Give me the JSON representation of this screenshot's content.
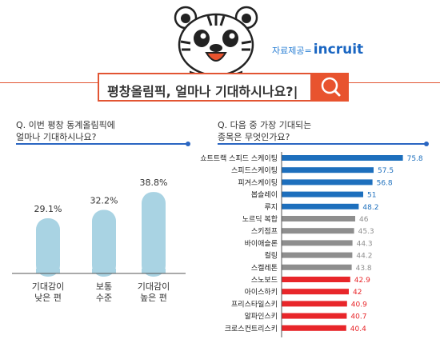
{
  "header": {
    "source_label": "자료제공=",
    "source_brand": "인크루트",
    "source_brand_text": "incruit",
    "search_text": "평창올림픽, 얼마나 기대하시나요?|"
  },
  "left": {
    "question_line1": "Q. 이번 평창 동계올림픽에",
    "question_line2": "얼마나 기대하시나요?"
  },
  "right": {
    "question_line1": "Q. 다음 중 가장 기대되는",
    "question_line2": "종목은 무엇인가요?"
  },
  "colors": {
    "blue": "#1d6fbd",
    "gray": "#8e8e8e",
    "red": "#e8262a",
    "lightblue": "#a9d3e3",
    "accent": "#e8532e"
  },
  "chart_data": [
    {
      "type": "bar",
      "categories": [
        "기대감이 낮은 편",
        "보통 수준",
        "기대감이 높은 편"
      ],
      "category_lines": [
        [
          "기대감이",
          "낮은 편"
        ],
        [
          "보통",
          "수준"
        ],
        [
          "기대감이",
          "높은 편"
        ]
      ],
      "values": [
        29.1,
        32.2,
        38.8
      ],
      "value_labels": [
        "29.1%",
        "32.2%",
        "38.8%"
      ]
    },
    {
      "type": "bar",
      "orientation": "horizontal",
      "categories": [
        "쇼트트랙 스피드 스케이팅",
        "스피드스케이팅",
        "피겨스케이팅",
        "봅슬레이",
        "루지",
        "노르딕 복합",
        "스키점프",
        "바이애슬론",
        "컬링",
        "스켈레톤",
        "스노보드",
        "아이스하키",
        "프리스타일스키",
        "알파인스키",
        "크로스컨트리스키"
      ],
      "values": [
        75.8,
        57.5,
        56.8,
        51,
        48.2,
        46,
        45.3,
        44.3,
        44.2,
        43.8,
        42.9,
        42,
        40.9,
        40.7,
        40.4
      ],
      "groups": [
        "blue",
        "blue",
        "blue",
        "blue",
        "blue",
        "gray",
        "gray",
        "gray",
        "gray",
        "gray",
        "red",
        "red",
        "red",
        "red",
        "red"
      ]
    }
  ]
}
